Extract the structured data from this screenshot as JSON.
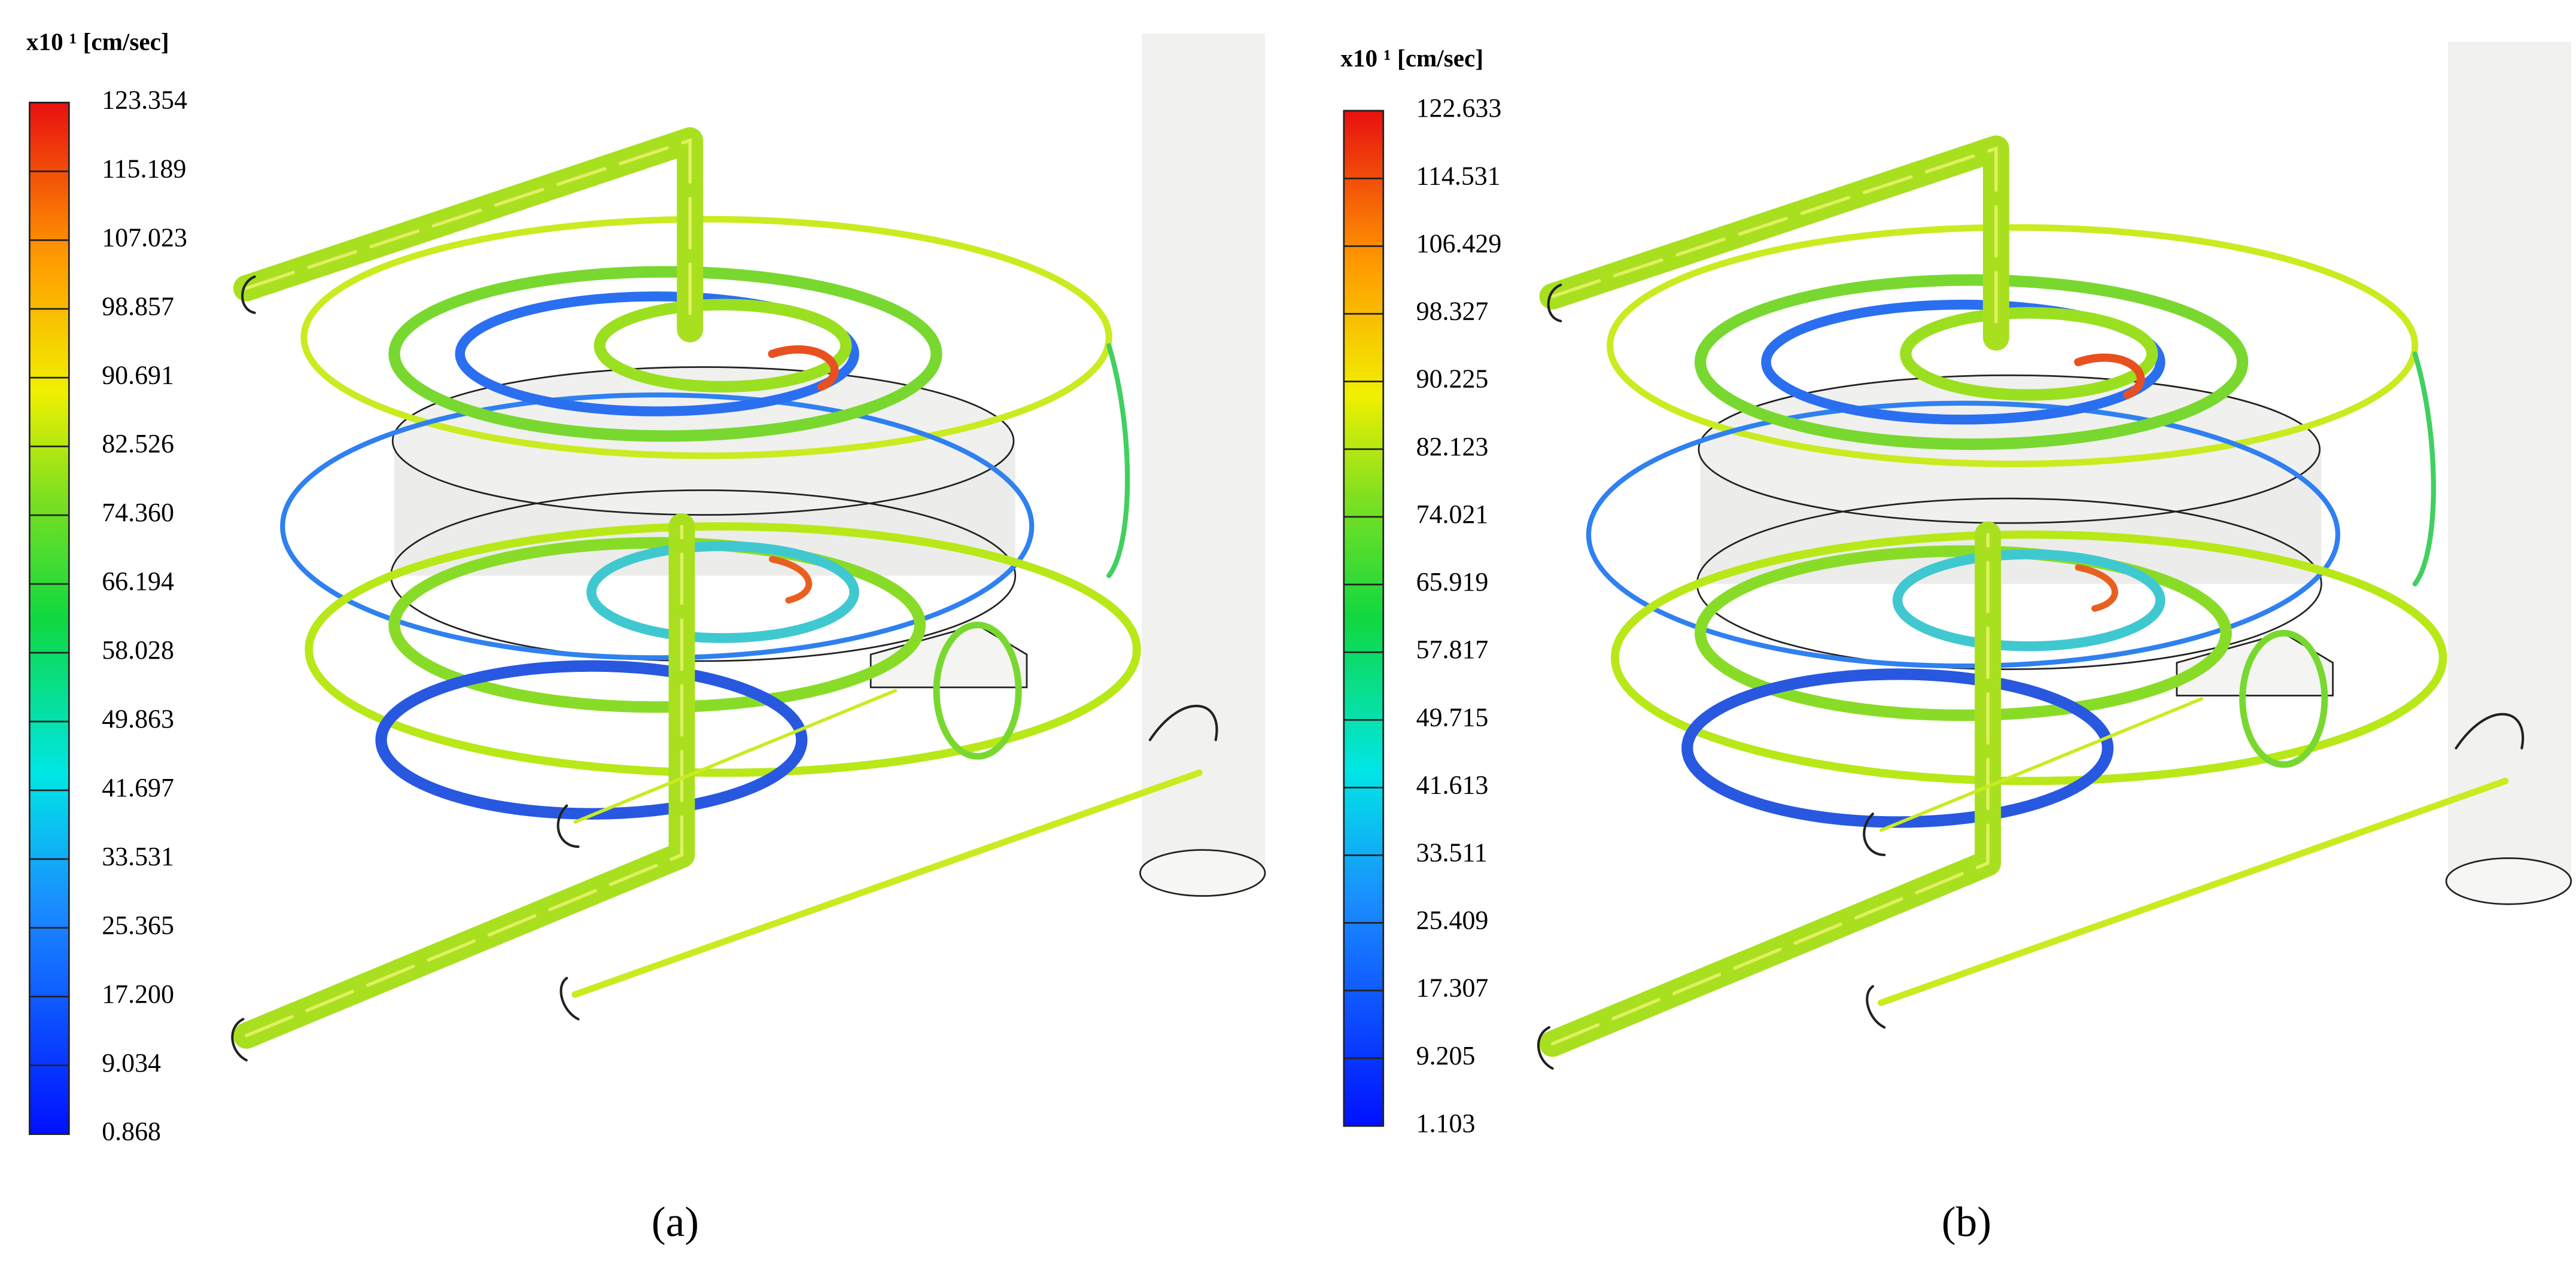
{
  "panels": [
    {
      "unit_label": "x10 ¹ [cm/sec]",
      "scale_labels": [
        "123.354",
        "115.189",
        "107.023",
        "98.857",
        "90.691",
        "82.526",
        "74.360",
        "66.194",
        "58.028",
        "49.863",
        "41.697",
        "33.531",
        "25.365",
        "17.200",
        "9.034",
        "0.868"
      ],
      "caption": "(a)"
    },
    {
      "unit_label": "x10 ¹ [cm/sec]",
      "scale_labels": [
        "122.633",
        "114.531",
        "106.429",
        "98.327",
        "90.225",
        "82.123",
        "74.021",
        "65.919",
        "57.817",
        "49.715",
        "41.613",
        "33.511",
        "25.409",
        "17.307",
        "9.205",
        "1.103"
      ],
      "caption": "(b)"
    }
  ]
}
